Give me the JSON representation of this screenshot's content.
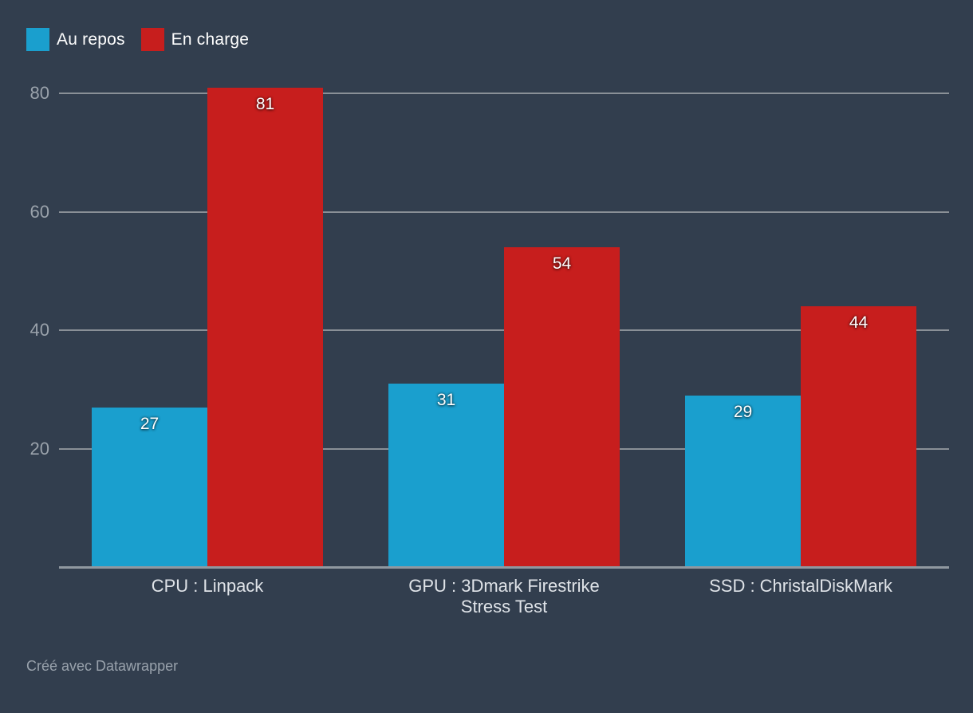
{
  "legend": {
    "items": [
      {
        "label": "Au repos",
        "color": "#1A9FCE"
      },
      {
        "label": "En charge",
        "color": "#C71E1D"
      }
    ]
  },
  "chart_data": {
    "type": "bar",
    "categories": [
      "CPU : Linpack",
      "GPU : 3Dmark Firestrike Stress Test",
      "SSD : ChristalDiskMark"
    ],
    "series": [
      {
        "name": "Au repos",
        "color": "#1A9FCE",
        "values": [
          27,
          31,
          29
        ]
      },
      {
        "name": "En charge",
        "color": "#C71E1D",
        "values": [
          81,
          54,
          44
        ]
      }
    ],
    "title": "",
    "xlabel": "",
    "ylabel": "",
    "ylim": [
      0,
      80
    ],
    "yticks": [
      20,
      40,
      60,
      80
    ],
    "grid": true,
    "legend_position": "top-left",
    "background_color": "#323E4E",
    "gridline_color": "#8A9097",
    "value_labels_shown": true
  },
  "footer": {
    "credit": "Créé avec Datawrapper"
  }
}
